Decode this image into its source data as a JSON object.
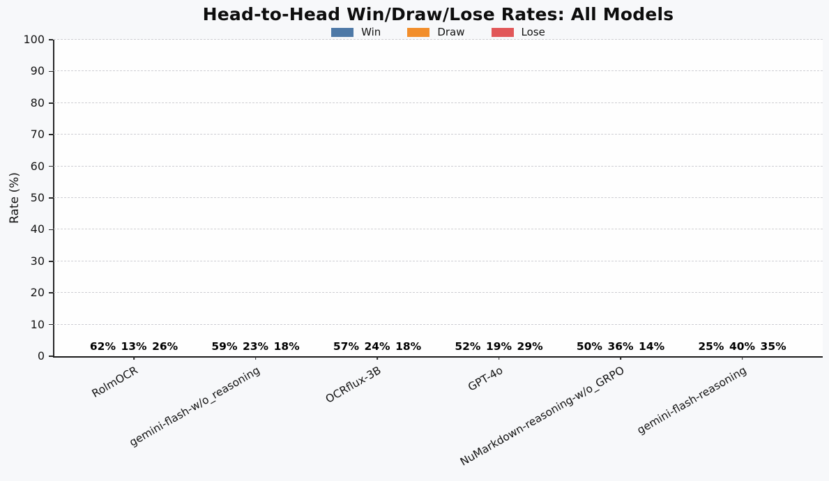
{
  "chart_data": {
    "type": "bar",
    "title": "Head-to-Head Win/Draw/Lose Rates: All Models",
    "xlabel": "",
    "ylabel": "Rate (%)",
    "ylim": [
      0,
      100
    ],
    "yticks": [
      0,
      10,
      20,
      30,
      40,
      50,
      60,
      70,
      80,
      90,
      100
    ],
    "grid": "horizontal-dashed",
    "legend_position": "top-center",
    "categories": [
      "RolmOCR",
      "gemini-flash-w/o_reasoning",
      "OCRflux-3B",
      "GPT-4o",
      "NuMarkdown-reasoning-w/o_GRPO",
      "gemini-flash-reasoning"
    ],
    "series": [
      {
        "name": "Win",
        "color": "#4E79A7",
        "values": [
          62,
          59,
          57,
          52,
          50,
          25
        ],
        "data_labels": [
          "62%",
          "59%",
          "57%",
          "52%",
          "50%",
          "25%"
        ],
        "bar_heights_pct": [
          61.5,
          58.8,
          57.1,
          51.8,
          49.7,
          25.4
        ]
      },
      {
        "name": "Draw",
        "color": "#F28E2B",
        "values": [
          13,
          23,
          24,
          19,
          36,
          40
        ],
        "data_labels": [
          "13%",
          "23%",
          "24%",
          "19%",
          "36%",
          "40%"
        ],
        "bar_heights_pct": [
          12.7,
          22.9,
          24.3,
          19.2,
          35.5,
          39.9
        ]
      },
      {
        "name": "Lose",
        "color": "#E15759",
        "values": [
          26,
          18,
          18,
          29,
          14,
          35
        ],
        "data_labels": [
          "26%",
          "18%",
          "18%",
          "29%",
          "14%",
          "35%"
        ],
        "bar_heights_pct": [
          25.4,
          18.2,
          18.4,
          28.6,
          14.2,
          34.5
        ]
      }
    ]
  },
  "colors": {
    "figure_background": "#f7f8fa",
    "plot_background": "#fefefe",
    "gridline": "#cdcdd2",
    "axis": "#262626",
    "text": "#111111"
  }
}
